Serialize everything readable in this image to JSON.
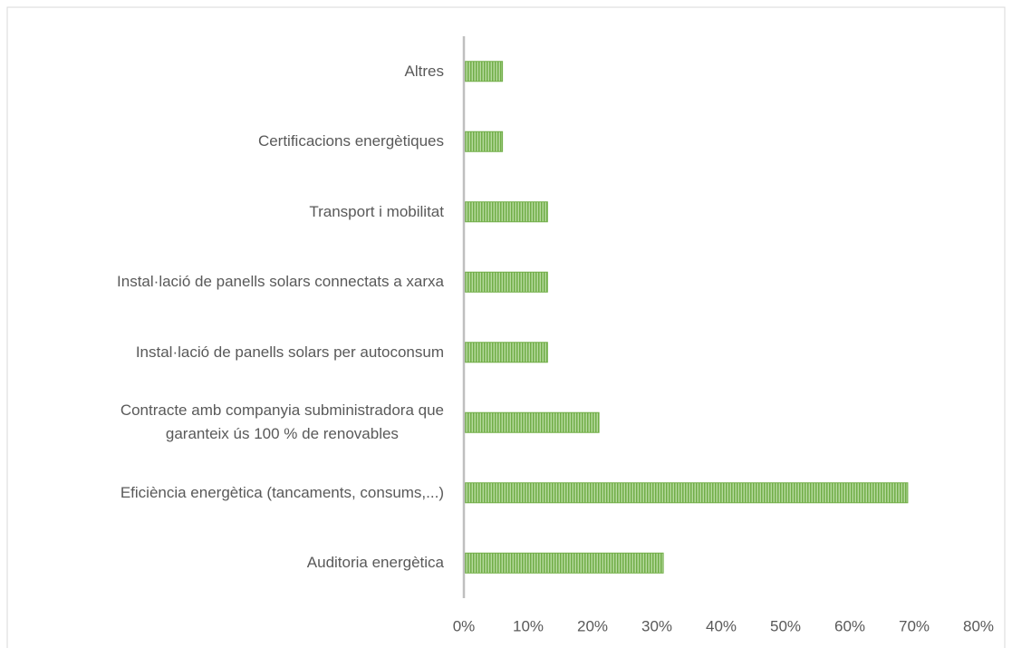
{
  "chart_data": {
    "type": "barh",
    "categories": [
      "Altres",
      "Certificacions energètiques",
      "Transport i mobilitat",
      "Instal·lació de panells solars connectats a xarxa",
      "Instal·lació de panells solars per autoconsum",
      "Contracte amb companyia subministradora que\ngaranteix ús 100 % de renovables",
      "Eficiència energètica (tancaments, consums,...)",
      "Auditoria energètica"
    ],
    "values": [
      6,
      6,
      13,
      13,
      13,
      21,
      69,
      31
    ],
    "color": "#70ad47",
    "xlim": [
      0,
      80
    ],
    "xticks": [
      {
        "value": 0,
        "label": "0%"
      },
      {
        "value": 10,
        "label": "10%"
      },
      {
        "value": 20,
        "label": "20%"
      },
      {
        "value": 30,
        "label": "30%"
      },
      {
        "value": 40,
        "label": "40%"
      },
      {
        "value": 50,
        "label": "50%"
      },
      {
        "value": 60,
        "label": "60%"
      },
      {
        "value": 70,
        "label": "70%"
      },
      {
        "value": 80,
        "label": "80%"
      }
    ],
    "grid": false
  }
}
